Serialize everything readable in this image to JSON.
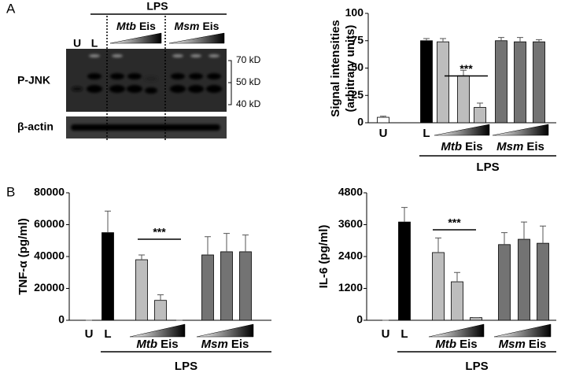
{
  "panel_labels": [
    "A",
    "B"
  ],
  "blot": {
    "treatment": "LPS",
    "lanes": [
      "U",
      "L"
    ],
    "groups": [
      {
        "species": "Mtb",
        "protein": "Eis"
      },
      {
        "species": "Msm",
        "protein": "Eis"
      }
    ],
    "rows": [
      "P-JNK",
      "β-actin"
    ],
    "markers": [
      "70 kD",
      "50 kD",
      "40 kD"
    ]
  },
  "chart_data": [
    {
      "type": "bar",
      "ylabel": [
        "Signal intensities",
        "(arbitrary units)"
      ],
      "categories": [
        "U",
        "L",
        null,
        null,
        null,
        null,
        null,
        null
      ],
      "values": [
        5,
        75,
        74,
        43,
        14,
        75,
        74,
        74
      ],
      "errors": [
        1,
        2,
        3,
        5,
        4,
        3,
        4,
        2
      ],
      "colors": [
        "#ffffff",
        "#000000",
        "#bdbdbd",
        "#bdbdbd",
        "#bdbdbd",
        "#737373",
        "#737373",
        "#737373"
      ],
      "groups": [
        {
          "species": "Mtb",
          "protein": "Eis"
        },
        {
          "species": "Msm",
          "protein": "Eis"
        }
      ],
      "treatment": "LPS",
      "annotation": "***",
      "ylim": [
        0,
        100
      ],
      "yticks": [
        0,
        25,
        50,
        75,
        100
      ],
      "grid": false
    },
    {
      "type": "bar",
      "ylabel": [
        "TNF-α  (pg/ml)"
      ],
      "categories": [
        "U",
        "L",
        null,
        null,
        null,
        null,
        null,
        null
      ],
      "values": [
        0,
        55000,
        38000,
        12500,
        0,
        41000,
        43000,
        43000
      ],
      "errors": [
        0,
        13500,
        3000,
        3500,
        0,
        11500,
        11500,
        10500
      ],
      "colors": [
        "#ffffff",
        "#000000",
        "#bdbdbd",
        "#bdbdbd",
        "#bdbdbd",
        "#737373",
        "#737373",
        "#737373"
      ],
      "groups": [
        {
          "species": "Mtb",
          "protein": "Eis"
        },
        {
          "species": "Msm",
          "protein": "Eis"
        }
      ],
      "treatment": "LPS",
      "annotation": "***",
      "ylim": [
        0,
        80000
      ],
      "yticks": [
        0,
        20000,
        40000,
        60000,
        80000
      ],
      "grid": false
    },
    {
      "type": "bar",
      "ylabel": [
        "IL-6  (pg/ml)"
      ],
      "categories": [
        "U",
        "L",
        null,
        null,
        null,
        null,
        null,
        null
      ],
      "values": [
        0,
        3700,
        2550,
        1450,
        100,
        2850,
        3050,
        2900
      ],
      "errors": [
        0,
        550,
        550,
        350,
        0,
        450,
        650,
        650
      ],
      "colors": [
        "#ffffff",
        "#000000",
        "#bdbdbd",
        "#bdbdbd",
        "#bdbdbd",
        "#737373",
        "#737373",
        "#737373"
      ],
      "groups": [
        {
          "species": "Mtb",
          "protein": "Eis"
        },
        {
          "species": "Msm",
          "protein": "Eis"
        }
      ],
      "treatment": "LPS",
      "annotation": "***",
      "ylim": [
        0,
        4800
      ],
      "yticks": [
        0,
        1200,
        2400,
        3600,
        4800
      ],
      "grid": false
    }
  ]
}
